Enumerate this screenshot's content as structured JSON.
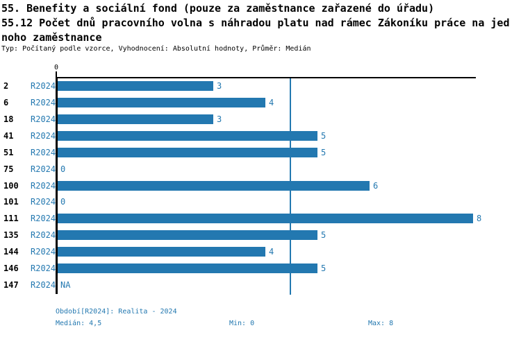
{
  "header": {
    "title_line1": "55. Benefity a sociální fond (pouze za zaměstnance zařazené do úřadu)",
    "title_line2": "55.12 Počet dnů pracovního volna s náhradou platu nad rámec Zákoníku práce na jed",
    "title_line3": "noho zaměstnance",
    "subtitle": "Typ: Počítaný podle vzorce, Vyhodnocení: Absolutní hodnoty, Průměr: Medián"
  },
  "chart_data": {
    "type": "bar",
    "orientation": "horizontal",
    "title": "55.12 Počet dnů pracovního volna s náhradou platu nad rámec Zákoníku práce na jednoho zaměstnance",
    "categories": [
      "2",
      "6",
      "18",
      "41",
      "51",
      "75",
      "100",
      "101",
      "111",
      "135",
      "144",
      "146",
      "147"
    ],
    "series": [
      {
        "name": "R2024",
        "values": [
          3,
          4,
          3,
          5,
          5,
          0,
          6,
          0,
          8,
          5,
          4,
          5,
          null
        ],
        "value_labels": [
          "3",
          "4",
          "3",
          "5",
          "5",
          "0",
          "6",
          "0",
          "8",
          "5",
          "4",
          "5",
          "NA"
        ]
      }
    ],
    "xlim": [
      0,
      8
    ],
    "axis_tick_labels": [
      "0"
    ],
    "median_reference_line": 4.5,
    "grid": false,
    "legend_position": "none",
    "colors": {
      "bar": "#2378b0",
      "median_line": "#2378b0",
      "series_label": "#2378b0",
      "value_label": "#2378b0",
      "axis": "#000000",
      "footer_text": "#2378b0"
    }
  },
  "footer": {
    "period": "Období[R2024]: Realita - 2024",
    "median": "Medián: 4,5",
    "min": "Min: 0",
    "max": "Max: 8"
  }
}
